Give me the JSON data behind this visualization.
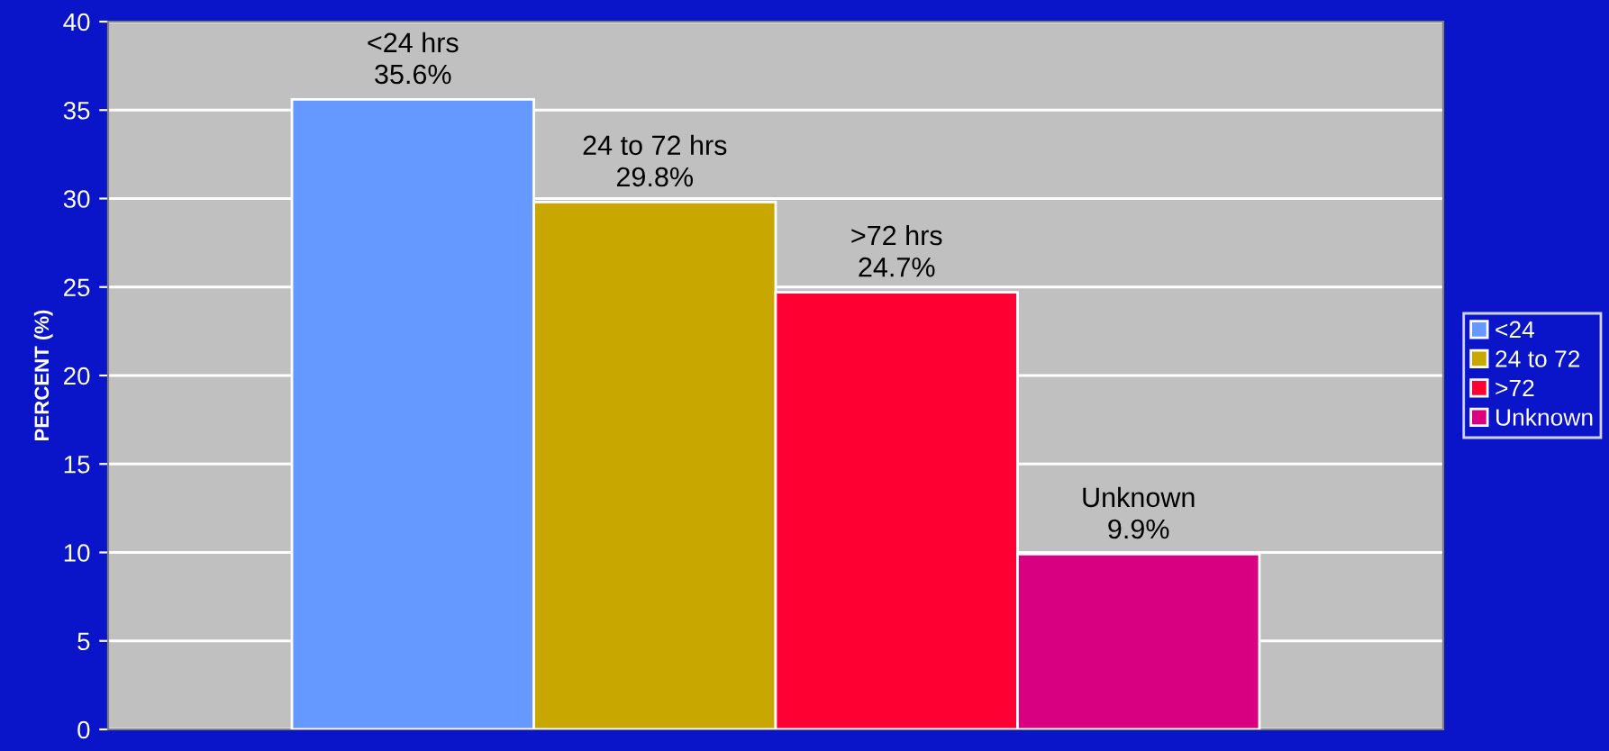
{
  "chart_data": {
    "type": "bar",
    "ylabel": "PERCENT (%)",
    "categories": [
      null
    ],
    "series": [
      {
        "name": "<24",
        "color": "#6699ff",
        "values": [
          35.6
        ],
        "value_labels": [
          "<24 hrs\n35.6%"
        ]
      },
      {
        "name": "24 to 72",
        "color": "#c8a800",
        "values": [
          29.8
        ],
        "value_labels": [
          "24 to 72 hrs\n29.8%"
        ]
      },
      {
        "name": ">72",
        "color": "#ff0033",
        "values": [
          24.7
        ],
        "value_labels": [
          ">72 hrs\n24.7%"
        ]
      },
      {
        "name": "Unknown",
        "color": "#d80080",
        "values": [
          9.9
        ],
        "value_labels": [
          "Unknown\n9.9%"
        ]
      }
    ],
    "ylim": [
      0,
      40
    ],
    "yticks": [
      0,
      5,
      10,
      15,
      20,
      25,
      30,
      35,
      40
    ],
    "grid": "y",
    "legend": "right",
    "tick_labels": "y"
  }
}
